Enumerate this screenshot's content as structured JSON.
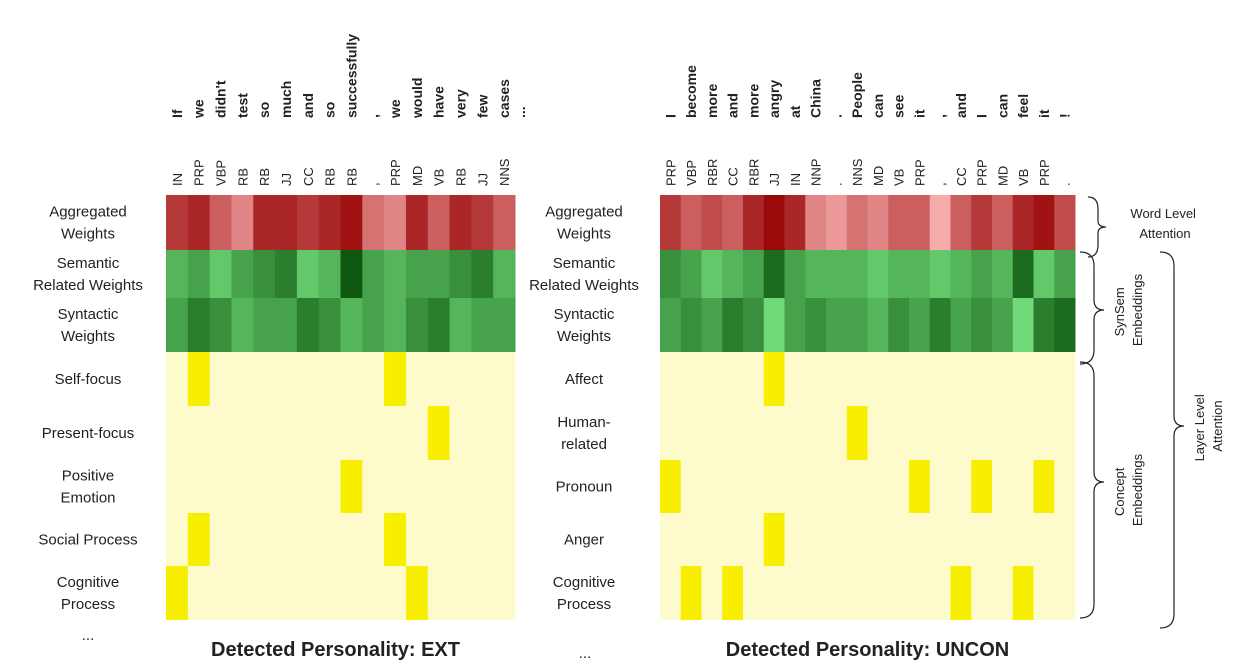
{
  "left": {
    "tokens": [
      "If",
      "we",
      "didn't",
      "test",
      "so",
      "much",
      "and",
      "so",
      "successfully",
      ",",
      "we",
      "would",
      "have",
      "very",
      "few",
      "cases"
    ],
    "pos": [
      "IN",
      "PRP",
      "VBP",
      "RB",
      "RB",
      "JJ",
      "CC",
      "RB",
      "RB",
      ",",
      "PRP",
      "MD",
      "VB",
      "RB",
      "JJ",
      "NNS"
    ],
    "row_labels": [
      [
        "Aggregated",
        "Weights"
      ],
      [
        "Semantic",
        "Related Weights"
      ],
      [
        "Syntactic",
        "Weights"
      ],
      [
        "Self-focus"
      ],
      [
        "Present-focus"
      ],
      [
        "Positive",
        "Emotion"
      ],
      [
        "Social Process"
      ],
      [
        "Cognitive",
        "Process"
      ]
    ],
    "aggregated": [
      0.7,
      0.8,
      0.5,
      0.3,
      0.8,
      0.8,
      0.7,
      0.8,
      0.9,
      0.4,
      0.3,
      0.8,
      0.5,
      0.8,
      0.7,
      0.5
    ],
    "semantic": [
      0.4,
      0.5,
      0.3,
      0.5,
      0.6,
      0.7,
      0.3,
      0.4,
      0.9,
      0.5,
      0.4,
      0.5,
      0.5,
      0.6,
      0.7,
      0.4
    ],
    "syntactic": [
      0.5,
      0.7,
      0.6,
      0.4,
      0.5,
      0.5,
      0.7,
      0.6,
      0.4,
      0.5,
      0.4,
      0.6,
      0.7,
      0.4,
      0.5,
      0.5
    ],
    "concepts": [
      [
        0,
        1,
        0,
        0,
        0,
        0,
        0,
        0,
        0,
        0,
        1,
        0,
        0,
        0,
        0,
        0
      ],
      [
        0,
        0,
        0,
        0,
        0,
        0,
        0,
        0,
        0,
        0,
        0,
        0,
        1,
        0,
        0,
        0
      ],
      [
        0,
        0,
        0,
        0,
        0,
        0,
        0,
        0,
        1,
        0,
        0,
        0,
        0,
        0,
        0,
        0
      ],
      [
        0,
        1,
        0,
        0,
        0,
        0,
        0,
        0,
        0,
        0,
        1,
        0,
        0,
        0,
        0,
        0
      ],
      [
        1,
        0,
        0,
        0,
        0,
        0,
        0,
        0,
        0,
        0,
        0,
        1,
        0,
        0,
        0,
        0
      ]
    ],
    "caption": "Detected Personality: EXT"
  },
  "right": {
    "tokens": [
      "I",
      "become",
      "more",
      "and",
      "more",
      "angry",
      "at",
      "China",
      ".",
      "People",
      "can",
      "see",
      "it",
      ",",
      "and",
      "I",
      "can",
      "feel",
      "it",
      "!"
    ],
    "pos": [
      "PRP",
      "VBP",
      "RBR",
      "CC",
      "RBR",
      "JJ",
      "IN",
      "NNP",
      ".",
      "NNS",
      "MD",
      "VB",
      "PRP",
      ",",
      "CC",
      "PRP",
      "MD",
      "VB",
      "PRP",
      "."
    ],
    "row_labels": [
      [
        "Aggregated",
        "Weights"
      ],
      [
        "Semantic",
        "Related Weights"
      ],
      [
        "Syntactic",
        "Weights"
      ],
      [
        "Affect"
      ],
      [
        "Human-",
        "related"
      ],
      [
        "Pronoun"
      ],
      [
        "Anger"
      ],
      [
        "Cognitive",
        "Process"
      ]
    ],
    "aggregated": [
      0.7,
      0.5,
      0.6,
      0.5,
      0.8,
      0.95,
      0.8,
      0.3,
      0.2,
      0.4,
      0.3,
      0.5,
      0.5,
      0.1,
      0.5,
      0.7,
      0.5,
      0.8,
      0.9,
      0.6
    ],
    "semantic": [
      0.6,
      0.5,
      0.3,
      0.4,
      0.5,
      0.8,
      0.5,
      0.4,
      0.4,
      0.4,
      0.3,
      0.4,
      0.4,
      0.3,
      0.4,
      0.5,
      0.4,
      0.8,
      0.3,
      0.5
    ],
    "syntactic": [
      0.5,
      0.6,
      0.5,
      0.7,
      0.6,
      0.2,
      0.5,
      0.6,
      0.5,
      0.5,
      0.4,
      0.6,
      0.5,
      0.7,
      0.5,
      0.6,
      0.5,
      0.2,
      0.7,
      0.8
    ],
    "concepts": [
      [
        0,
        0,
        0,
        0,
        0,
        1,
        0,
        0,
        0,
        0,
        0,
        0,
        0,
        0,
        0,
        0,
        0,
        0,
        0,
        0
      ],
      [
        0,
        0,
        0,
        0,
        0,
        0,
        0,
        0,
        0,
        1,
        0,
        0,
        0,
        0,
        0,
        0,
        0,
        0,
        0,
        0
      ],
      [
        1,
        0,
        0,
        0,
        0,
        0,
        0,
        0,
        0,
        0,
        0,
        0,
        1,
        0,
        0,
        1,
        0,
        0,
        1,
        0
      ],
      [
        0,
        0,
        0,
        0,
        0,
        1,
        0,
        0,
        0,
        0,
        0,
        0,
        0,
        0,
        0,
        0,
        0,
        0,
        0,
        0
      ],
      [
        0,
        1,
        0,
        1,
        0,
        0,
        0,
        0,
        0,
        0,
        0,
        0,
        0,
        0,
        1,
        0,
        0,
        1,
        0,
        0
      ]
    ],
    "caption": "Detected Personality: UNCON"
  },
  "ellipsis": "...",
  "annotations": {
    "word_level": [
      "Word Level",
      "Attention"
    ],
    "synsem": [
      "SynSem",
      "Embeddings"
    ],
    "concept": [
      "Concept",
      "Embeddings"
    ],
    "layer_level": [
      "Layer Level",
      "Attention"
    ]
  }
}
